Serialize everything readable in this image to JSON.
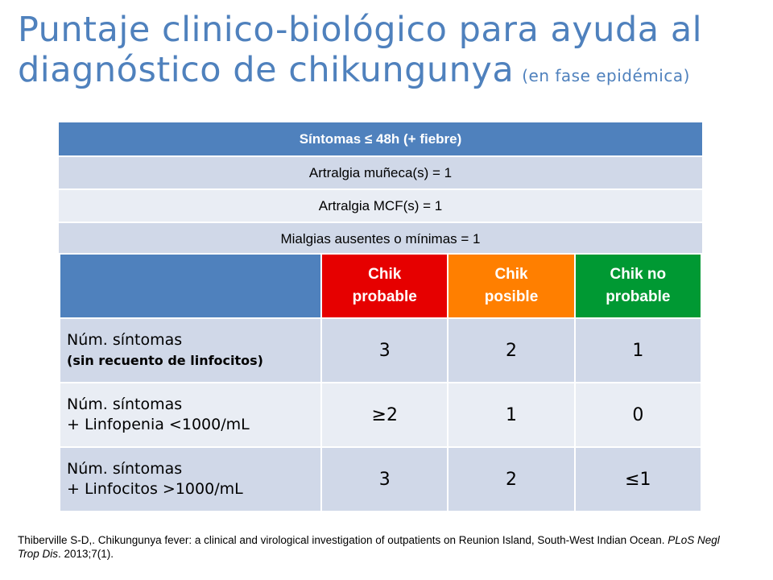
{
  "title": {
    "line1": "Puntaje clinico-biológico para ayuda al",
    "line2": "diagnóstico de chikungunya",
    "subtitle": "(en fase epidémica)"
  },
  "symptoms": {
    "header": "Síntomas ≤ 48h (+ fiebre)",
    "rows": [
      "Artralgia muñeca(s) = 1",
      "Artralgia MCF(s) = 1",
      "Mialgias ausentes o mínimas = 1"
    ]
  },
  "score": {
    "columns": [
      {
        "line1": "Chik",
        "line2": "probable"
      },
      {
        "line1": "Chik",
        "line2": "posible"
      },
      {
        "line1": "Chik no",
        "line2": "probable"
      }
    ],
    "rows": [
      {
        "label1": "Núm. síntomas",
        "label2": "(sin recuento de linfocitos)",
        "values": [
          "3",
          "2",
          "1"
        ]
      },
      {
        "label1": "Núm. síntomas",
        "label2": "+ Linfopenia <1000/mL",
        "values": [
          "≥2",
          "1",
          "0"
        ]
      },
      {
        "label1": "Núm. síntomas",
        "label2": "+ Linfocitos >1000/mL",
        "values": [
          "3",
          "2",
          "≤1"
        ]
      }
    ]
  },
  "citation": {
    "text": "Thiberville S-D,. Chikungunya fever: a clinical and virological investigation of outpatients on Reunion Island, South-West Indian Ocean.",
    "journal": "PLoS Negl Trop Dis",
    "details": ". 2013;7(1)."
  },
  "colors": {
    "title": "#4f81bd",
    "header_blue": "#4f81bd",
    "probable": "#e60000",
    "posible": "#ff7f00",
    "no_probable": "#009933"
  }
}
